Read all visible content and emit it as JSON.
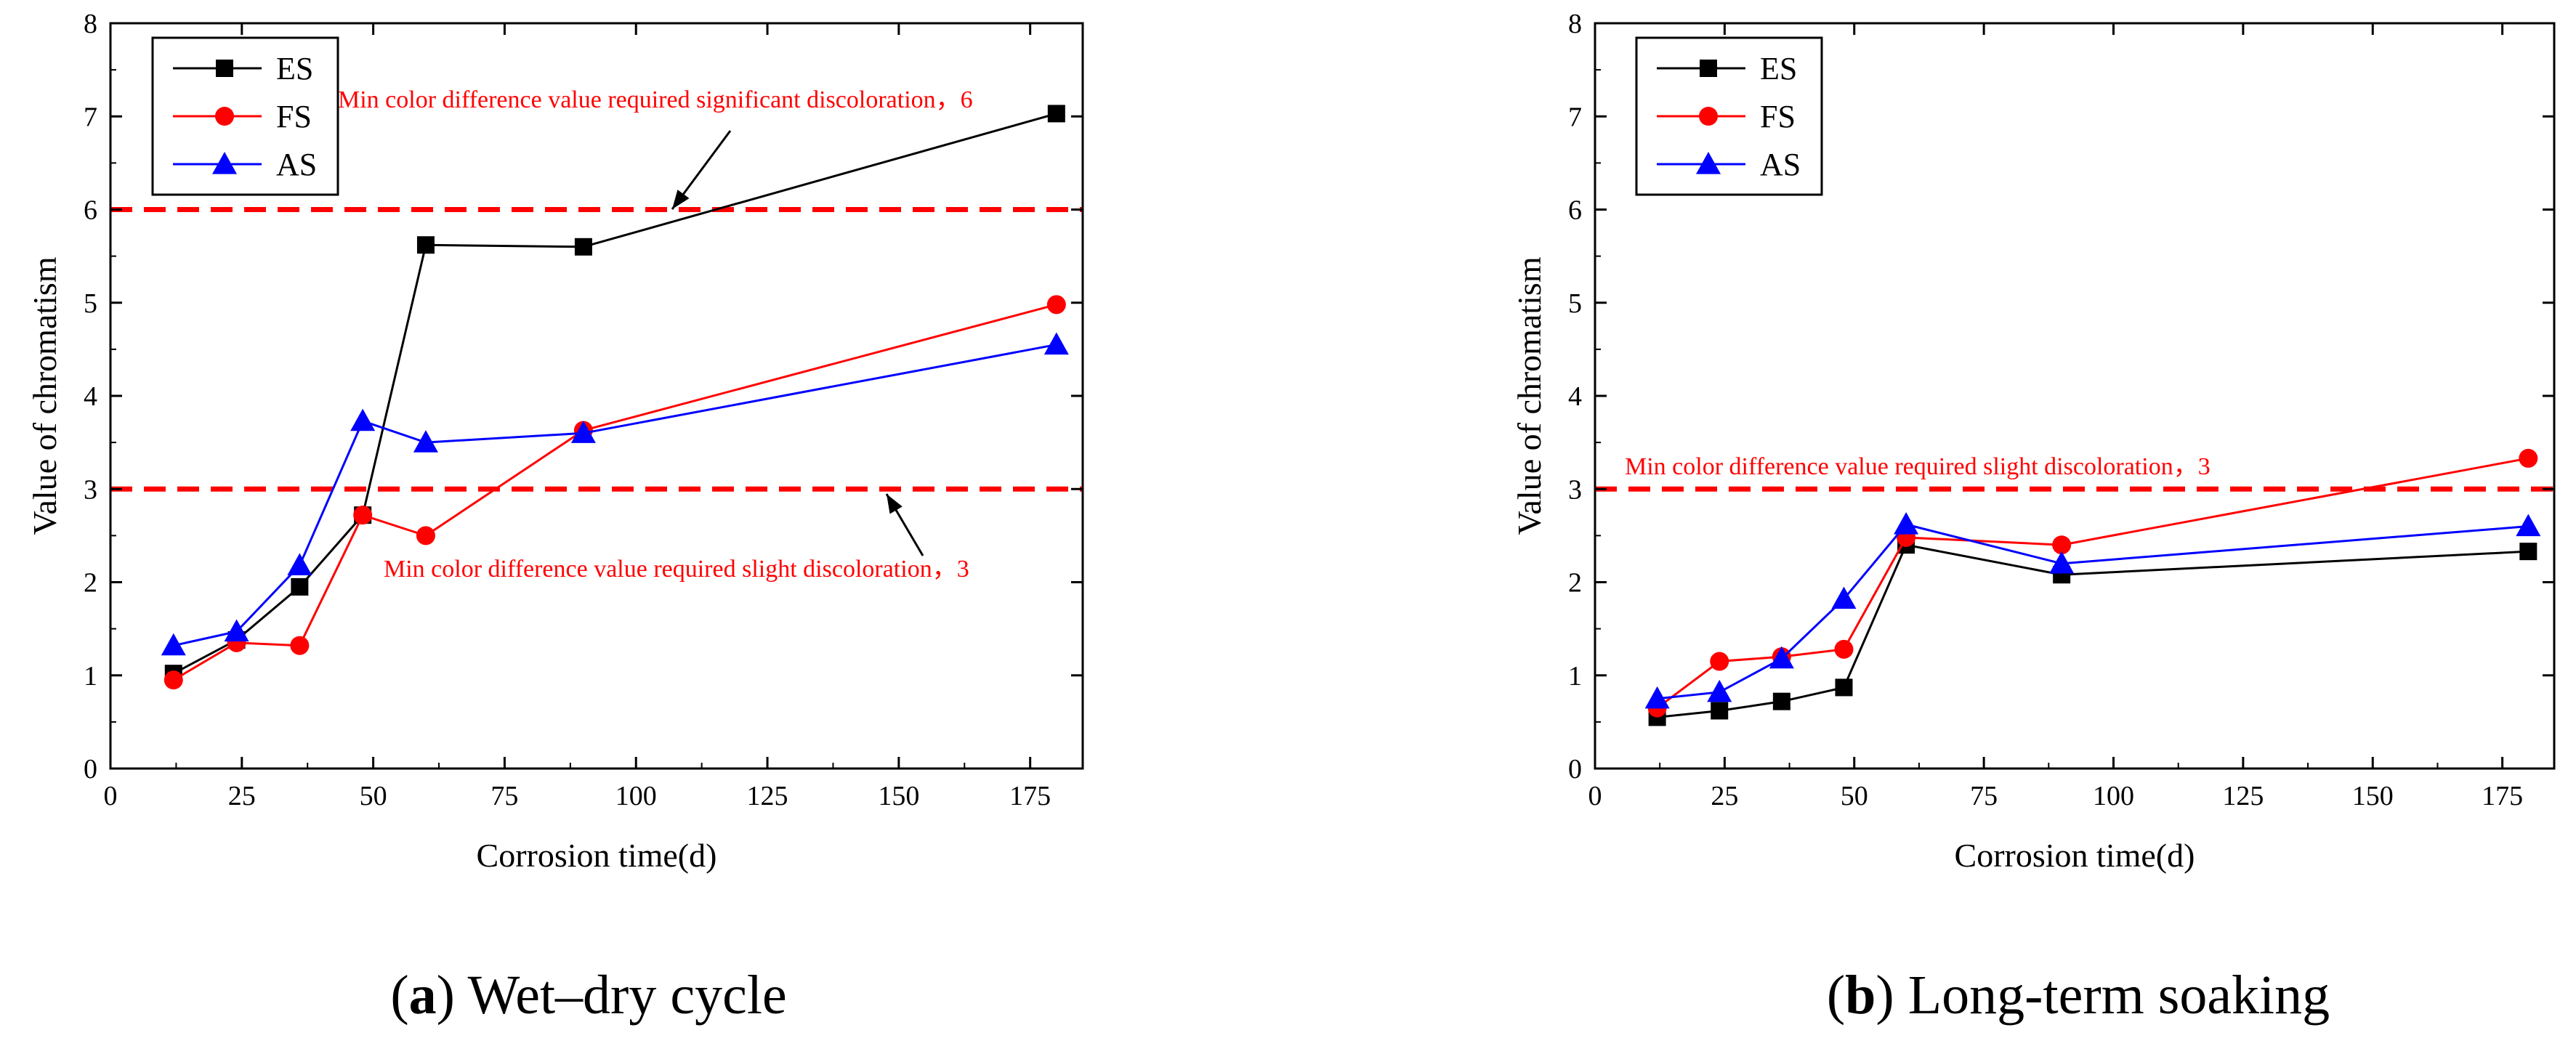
{
  "chart_data": [
    {
      "panel": "a",
      "type": "line",
      "caption_letter": "a",
      "caption_text": "Wet–dry cycle",
      "xlabel": "Corrosion time(d)",
      "ylabel": "Value of chromatism",
      "xlim": [
        0,
        185
      ],
      "ylim": [
        0,
        8
      ],
      "xticks": [
        0,
        25,
        50,
        75,
        100,
        125,
        150,
        175
      ],
      "yticks": [
        0,
        1,
        2,
        3,
        4,
        5,
        6,
        7,
        8
      ],
      "x": [
        12,
        24,
        36,
        48,
        60,
        90,
        180
      ],
      "series": [
        {
          "name": "ES",
          "color": "#000000",
          "marker": "square",
          "values": [
            1.02,
            1.38,
            1.95,
            2.72,
            5.62,
            5.6,
            7.03
          ]
        },
        {
          "name": "FS",
          "color": "#ff0000",
          "marker": "circle",
          "values": [
            0.95,
            1.35,
            1.32,
            2.72,
            2.5,
            3.63,
            4.98
          ]
        },
        {
          "name": "AS",
          "color": "#0000ff",
          "marker": "triangle",
          "values": [
            1.32,
            1.47,
            2.18,
            3.73,
            3.5,
            3.6,
            4.55
          ]
        }
      ],
      "reference_lines": [
        {
          "y": 6,
          "color": "#ff0000",
          "label": "Min color difference value required significant discoloration，6"
        },
        {
          "y": 3,
          "color": "#ff0000",
          "label": "Min color difference value required slight discoloration，3"
        }
      ],
      "legend_position": "top-left"
    },
    {
      "panel": "b",
      "type": "line",
      "caption_letter": "b",
      "caption_text": "Long-term soaking",
      "xlabel": "Corrosion time(d)",
      "ylabel": "Value of chromatism",
      "xlim": [
        0,
        185
      ],
      "ylim": [
        0,
        8
      ],
      "xticks": [
        0,
        25,
        50,
        75,
        100,
        125,
        150,
        175
      ],
      "yticks": [
        0,
        1,
        2,
        3,
        4,
        5,
        6,
        7,
        8
      ],
      "x": [
        12,
        24,
        36,
        48,
        60,
        90,
        180
      ],
      "series": [
        {
          "name": "ES",
          "color": "#000000",
          "marker": "square",
          "values": [
            0.55,
            0.62,
            0.72,
            0.87,
            2.4,
            2.08,
            2.33
          ]
        },
        {
          "name": "FS",
          "color": "#ff0000",
          "marker": "circle",
          "values": [
            0.65,
            1.15,
            1.2,
            1.28,
            2.48,
            2.4,
            3.33
          ]
        },
        {
          "name": "AS",
          "color": "#0000ff",
          "marker": "triangle",
          "values": [
            0.75,
            0.82,
            1.18,
            1.82,
            2.62,
            2.2,
            2.6
          ]
        }
      ],
      "reference_lines": [
        {
          "y": 3,
          "color": "#ff0000",
          "label": "Min color difference value required slight discoloration，3"
        }
      ],
      "legend_position": "top-left"
    }
  ]
}
